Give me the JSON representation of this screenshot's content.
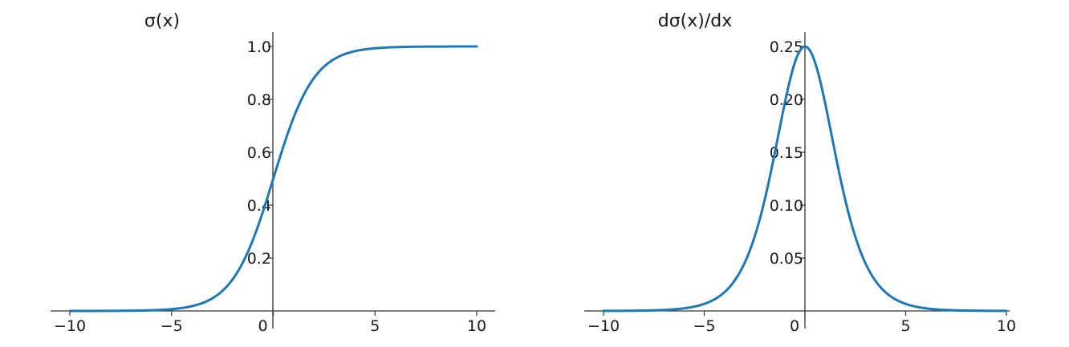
{
  "chart_data": [
    {
      "type": "line",
      "title": "σ(x)",
      "xlabel": "",
      "ylabel": "",
      "xlim": [
        -10,
        10
      ],
      "ylim": [
        0,
        1.05
      ],
      "xticks": [
        -10,
        -5,
        0,
        5,
        10
      ],
      "xtick_labels": [
        "−10",
        "−5",
        "0",
        "5",
        "10"
      ],
      "yticks": [
        0.2,
        0.4,
        0.6,
        0.8,
        1.0
      ],
      "ytick_labels": [
        "0.2",
        "0.4",
        "0.6",
        "0.8",
        "1.0"
      ],
      "grid": false,
      "color": "#1f77b4",
      "series": [
        {
          "function": "sigmoid",
          "x": [
            -10,
            -8,
            -6,
            -5,
            -4,
            -3,
            -2,
            -1,
            0,
            1,
            2,
            3,
            4,
            5,
            6,
            8,
            10
          ],
          "y": [
            5e-05,
            0.0003,
            0.0025,
            0.0067,
            0.018,
            0.047,
            0.119,
            0.269,
            0.5,
            0.731,
            0.881,
            0.953,
            0.982,
            0.993,
            0.9975,
            0.9997,
            0.99995
          ]
        }
      ]
    },
    {
      "type": "line",
      "title": "dσ(x)/dx",
      "xlabel": "",
      "ylabel": "",
      "xlim": [
        -10,
        10
      ],
      "ylim": [
        0,
        0.262
      ],
      "xticks": [
        -10,
        -5,
        0,
        5,
        10
      ],
      "xtick_labels": [
        "−10",
        "−5",
        "0",
        "5",
        "10"
      ],
      "yticks": [
        0.05,
        0.1,
        0.15,
        0.2,
        0.25
      ],
      "ytick_labels": [
        "0.05",
        "0.10",
        "0.15",
        "0.20",
        "0.25"
      ],
      "grid": false,
      "color": "#1f77b4",
      "series": [
        {
          "function": "sigmoid_derivative",
          "x": [
            -10,
            -8,
            -6,
            -5,
            -4,
            -3,
            -2,
            -1,
            0,
            1,
            2,
            3,
            4,
            5,
            6,
            8,
            10
          ],
          "y": [
            5e-05,
            0.0003,
            0.0025,
            0.0066,
            0.0177,
            0.0452,
            0.105,
            0.197,
            0.25,
            0.197,
            0.105,
            0.0452,
            0.0177,
            0.0066,
            0.0025,
            0.0003,
            5e-05
          ]
        }
      ]
    }
  ]
}
